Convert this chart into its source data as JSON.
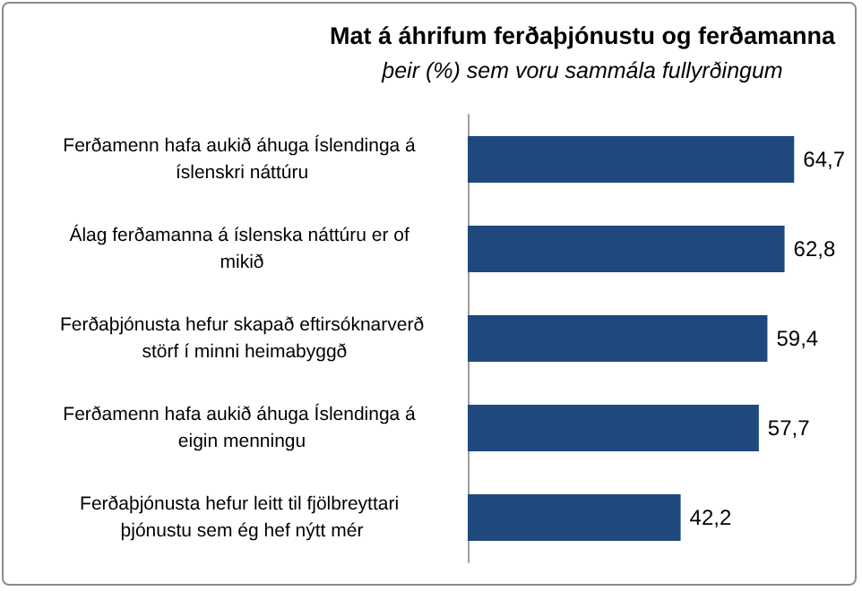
{
  "chart_data": {
    "type": "bar",
    "orientation": "horizontal",
    "title": "Mat á áhrifum ferðaþjónustu og ferðamanna",
    "subtitle": "þeir (%) sem voru sammála fullyrðingum",
    "categories": [
      "Ferðamenn hafa aukið áhuga Íslendinga á íslenskri náttúru",
      "Álag ferðamanna á íslenska náttúru er of mikið",
      "Ferðaþjónusta hefur skapað eftirsóknarverð störf í minni heimabyggð",
      "Ferðamenn hafa aukið áhuga Íslendinga á eigin menningu",
      "Ferðaþjónusta hefur leitt til fjölbreyttari þjónustu sem ég hef nýtt mér"
    ],
    "values": [
      64.7,
      62.8,
      59.4,
      57.7,
      42.2
    ],
    "value_labels": [
      "64,7",
      "62,8",
      "59,4",
      "57,7",
      "42,2"
    ],
    "color": "#1f497d"
  }
}
